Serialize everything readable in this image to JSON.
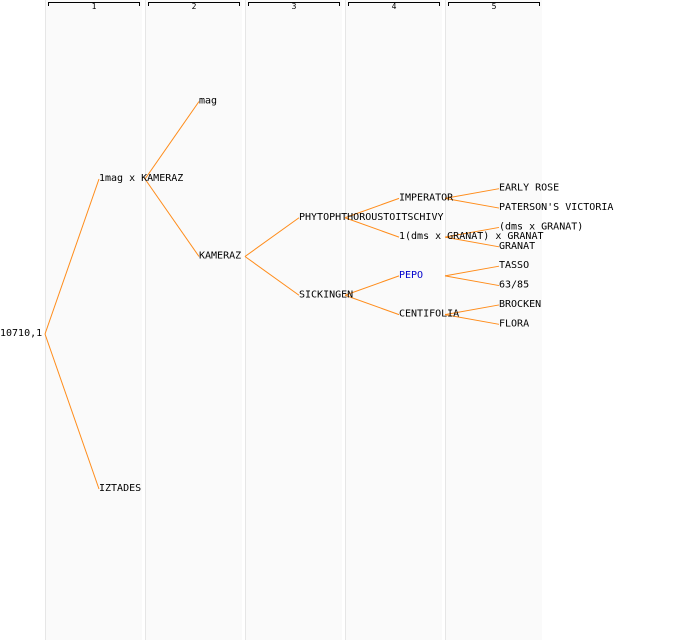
{
  "generations": [
    "1",
    "2",
    "3",
    "4",
    "5"
  ],
  "root": {
    "label": "10710,1",
    "children": [
      {
        "label": "1mag x KAMERAZ",
        "children": [
          {
            "label": "mag",
            "children": []
          },
          {
            "label": "KAMERAZ",
            "children": [
              {
                "label": "PHYTOPHTHOROUSTOITSCHIVY",
                "children": [
                  {
                    "label": "IMPERATOR",
                    "children": [
                      {
                        "label": "EARLY ROSE",
                        "children": []
                      },
                      {
                        "label": "PATERSON'S VICTORIA",
                        "children": []
                      }
                    ]
                  },
                  {
                    "label": "1(dms x GRANAT) x GRANAT",
                    "children": [
                      {
                        "label": "(dms x GRANAT)",
                        "children": []
                      },
                      {
                        "label": "GRANAT",
                        "children": []
                      }
                    ]
                  }
                ]
              },
              {
                "label": "SICKINGEN",
                "children": [
                  {
                    "label": "PEPO",
                    "highlight": true,
                    "color": "#0000cc",
                    "children": [
                      {
                        "label": "TASSO",
                        "children": []
                      },
                      {
                        "label": "63/85",
                        "children": []
                      }
                    ]
                  },
                  {
                    "label": "CENTIFOLIA",
                    "children": [
                      {
                        "label": "BROCKEN",
                        "children": []
                      },
                      {
                        "label": "FLORA",
                        "children": []
                      }
                    ]
                  }
                ]
              }
            ]
          }
        ]
      },
      {
        "label": "IZTADES",
        "children": []
      }
    ]
  },
  "colors": {
    "edge": "#ff8c1a",
    "highlight": "#0000cc",
    "text": "#000000"
  }
}
